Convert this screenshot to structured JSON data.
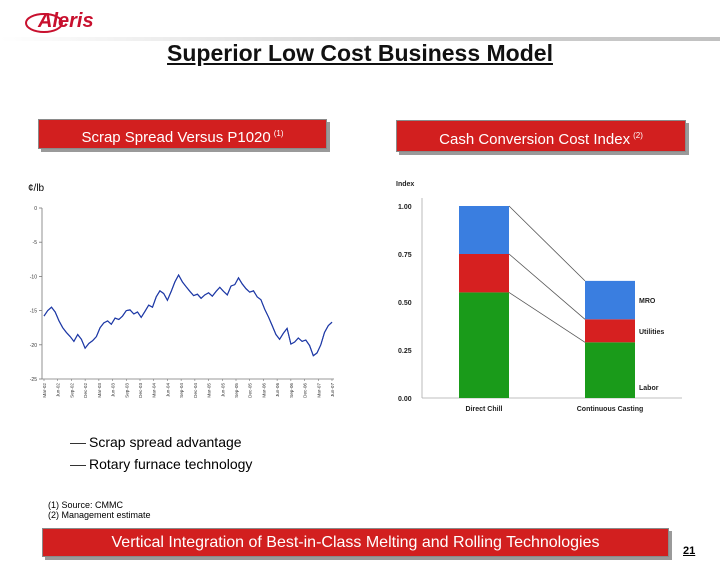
{
  "header": {
    "logo_text": "Aleris",
    "title": "Superior Low Cost Business Model"
  },
  "left_panel": {
    "title": "Scrap Spread Versus P1020",
    "footnote_ref": "(1)",
    "unit_label": "¢/lb"
  },
  "right_panel": {
    "title": "Cash Conversion Cost Index",
    "footnote_ref": "(2)"
  },
  "chart_data": [
    {
      "type": "line",
      "title": "Scrap Spread Versus P1020",
      "ylabel": "¢/lb",
      "ylim": [
        -25,
        0
      ],
      "y_ticks": [
        "0",
        "-5",
        "-10",
        "-15",
        "-20",
        "-25"
      ],
      "x_tick_labels": [
        "Mar-02",
        "Jun-02",
        "Sep-02",
        "Dec-02",
        "Mar-03",
        "Jun-03",
        "Sep-03",
        "Dec-03",
        "Mar-04",
        "Jun-04",
        "Sep-04",
        "Dec-04",
        "Mar-05",
        "Jun-05",
        "Sep-05",
        "Dec-05",
        "Mar-06",
        "Jun-06",
        "Sep-06",
        "Dec-06",
        "Mar-07",
        "Jun-07"
      ],
      "series": [
        {
          "values": [
            -15.8,
            -15,
            -14.5,
            -15.2,
            -16.5,
            -17.5,
            -18.2,
            -18.8,
            -19.5,
            -18.5,
            -19.2,
            -20.5,
            -19.8,
            -19.4,
            -18.8,
            -17.5,
            -16.8,
            -16.5,
            -17,
            -16.1,
            -16.3,
            -15.8,
            -15,
            -14.9,
            -15.5,
            -15.2,
            -16,
            -15.1,
            -14.2,
            -14.5,
            -13,
            -12.1,
            -12.5,
            -13.5,
            -12.2,
            -10.8,
            -9.8,
            -10.8,
            -11.5,
            -12.2,
            -12.8,
            -12.6,
            -13.2,
            -12.7,
            -12.4,
            -12.9,
            -12.2,
            -11.6,
            -12.2,
            -12.7,
            -11.4,
            -11.2,
            -10.2,
            -11.1,
            -11.8,
            -12.3,
            -12.1,
            -13,
            -13.4,
            -14.8,
            -15.9,
            -17.2,
            -18.5,
            -19.2,
            -18.3,
            -17.6,
            -19.9,
            -19.6,
            -19,
            -19.5,
            -19.3,
            -20.1,
            -21.6,
            -21.2,
            -20,
            -18.2,
            -17.2,
            -16.7
          ]
        },
        {
          "values": [
            -15.8,
            -15,
            -14.5,
            -15.2,
            -16.5,
            -17.5,
            -18.2,
            -18.8,
            -19.5,
            -18.5,
            -19.2,
            -20.5,
            -19.8,
            -19.4,
            -18.8,
            -17.5,
            -16.8,
            -16.5,
            -17,
            -16.1,
            -16.3,
            -15.8,
            -15,
            -14.9,
            -15.5,
            -15.2,
            -16,
            -15.1,
            -14.2,
            -14.5,
            -13,
            -12.1,
            -12.5,
            -13.5,
            -12.2,
            -10.8,
            -9.8,
            -10.8,
            -11.5,
            -12.2,
            -12.8,
            -12.6,
            -13.2,
            -12.7,
            -12.4,
            -12.9,
            -12.2,
            -11.6,
            -12.2,
            -12.7,
            -11.4,
            -11.2,
            -10.2,
            -11.1,
            -11.8,
            -12.3,
            -12.1,
            -13,
            -13.4,
            -14.8,
            -15.9,
            -17.2,
            -18.5,
            -19.2,
            -18.3,
            -17.6,
            -19.9,
            -19.6,
            -19,
            -19.5,
            -19.3,
            -20.1,
            -21.6,
            -21.2,
            -20,
            -18.2,
            -17.2,
            -16.7
          ]
        }
      ],
      "line_color": "#1f3aa6"
    },
    {
      "type": "bar",
      "stacked": true,
      "title": "Cash Conversion Cost Index",
      "ylabel": "Index",
      "ylim": [
        0,
        1.0
      ],
      "y_ticks": [
        "1.00",
        "0.75",
        "0.50",
        "0.25",
        "0.00"
      ],
      "categories": [
        "Direct Chill",
        "Continuous Casting"
      ],
      "series": [
        {
          "name": "Labor",
          "values": [
            0.55,
            0.29
          ],
          "color": "#1a9b1a"
        },
        {
          "name": "Utilities",
          "values": [
            0.2,
            0.12
          ],
          "color": "#d62020"
        },
        {
          "name": "MRO",
          "values": [
            0.25,
            0.2
          ],
          "color": "#3a7ee0"
        }
      ]
    }
  ],
  "legend": {
    "item_1": "Scrap spread advantage",
    "item_2": "Rotary furnace technology"
  },
  "footnotes": {
    "fn1": "(1) Source: CMMC",
    "fn2": "(2) Management estimate"
  },
  "footer": {
    "banner": "Vertical Integration of Best-in-Class Melting and Rolling Technologies",
    "page_number": "21"
  },
  "colors": {
    "brand_red": "#d21f1f",
    "line_blue": "#1f3aa6"
  }
}
